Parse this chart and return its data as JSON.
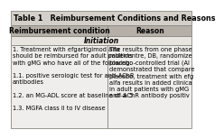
{
  "title": "Table 1   Reimbursement Conditions and Reasons",
  "col1_header": "Reimbursement condition",
  "col2_header": "Reason",
  "subheader": "Initiation",
  "col1_lines": [
    "1. Treatment with efgartigimod alfa",
    "should be reimbursed for adult patients",
    "with gMG who have all of the following:",
    " ",
    "1.1. positive serologic test for anti-AChR",
    "antibodies",
    " ",
    "1.2. an MG-ADL score at baseline of ≥ 5",
    " ",
    "1.3. MGFA class II to IV disease"
  ],
  "col2_lines": [
    "The results from one phase",
    "multicentre, DB, randomize",
    "placebo-controlled trial (Al",
    "demonstrated that compare",
    "placebo, treatment with efg",
    "alfa results in added clinica",
    "in adult patients with gMG",
    "anti-AChR antibody positiv"
  ],
  "bg_title": "#d4cfc9",
  "bg_header": "#b5afa8",
  "bg_subheader": "#e8e4e0",
  "bg_body": "#f0eeec",
  "border_color": "#888880",
  "title_fontsize": 5.8,
  "header_fontsize": 5.5,
  "body_fontsize": 4.8,
  "fig_width": 2.04,
  "fig_height": 1.34,
  "col_split": 0.535
}
